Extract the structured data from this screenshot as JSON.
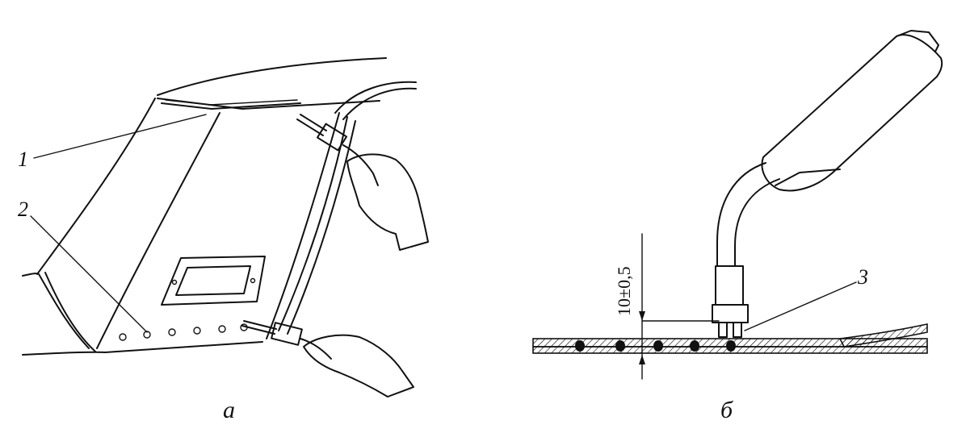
{
  "figure": {
    "panel_a": {
      "caption": "а",
      "callouts": [
        {
          "label": "1"
        },
        {
          "label": "2"
        }
      ]
    },
    "panel_b": {
      "caption": "б",
      "callouts": [
        {
          "label": "3"
        }
      ],
      "dimension": "10±0,5"
    }
  }
}
